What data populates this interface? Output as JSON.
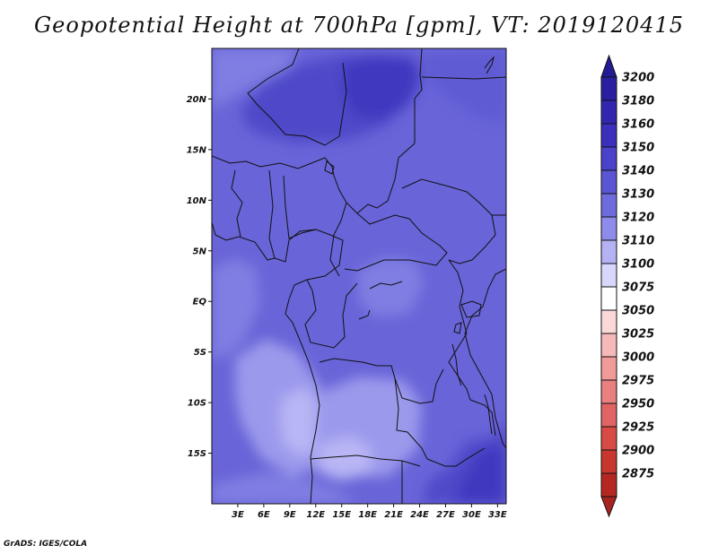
{
  "title": "Geopotential Height at 700hPa [gpm], VT: 2019120415",
  "credit": "GrADS: IGES/COLA",
  "map": {
    "lon_range": [
      0,
      34
    ],
    "lat_range": [
      -20,
      25
    ],
    "lat_ticks": [
      {
        "value": 20,
        "label": "20N"
      },
      {
        "value": 15,
        "label": "15N"
      },
      {
        "value": 10,
        "label": "10N"
      },
      {
        "value": 5,
        "label": "5N"
      },
      {
        "value": 0,
        "label": "EQ"
      },
      {
        "value": -5,
        "label": "5S"
      },
      {
        "value": -10,
        "label": "10S"
      },
      {
        "value": -15,
        "label": "15S"
      }
    ],
    "lon_ticks": [
      {
        "value": 3,
        "label": "3E"
      },
      {
        "value": 6,
        "label": "6E"
      },
      {
        "value": 9,
        "label": "9E"
      },
      {
        "value": 12,
        "label": "12E"
      },
      {
        "value": 15,
        "label": "15E"
      },
      {
        "value": 18,
        "label": "18E"
      },
      {
        "value": 21,
        "label": "21E"
      },
      {
        "value": 24,
        "label": "24E"
      },
      {
        "value": 27,
        "label": "27E"
      },
      {
        "value": 30,
        "label": "30E"
      },
      {
        "value": 33,
        "label": "33E"
      }
    ]
  },
  "colorbar": {
    "levels": [
      {
        "label": "3200",
        "color": "#2a1fa0"
      },
      {
        "label": "3180",
        "color": "#3226ae"
      },
      {
        "label": "3160",
        "color": "#3b30bb"
      },
      {
        "label": "3150",
        "color": "#4a42c8"
      },
      {
        "label": "3140",
        "color": "#5a55d2"
      },
      {
        "label": "3130",
        "color": "#6e6cdd"
      },
      {
        "label": "3120",
        "color": "#8e8ceb"
      },
      {
        "label": "3110",
        "color": "#b4b2f3"
      },
      {
        "label": "3100",
        "color": "#d8d6fa"
      },
      {
        "label": "3075",
        "color": "#ffffff"
      },
      {
        "label": "3050",
        "color": "#fbd8d8"
      },
      {
        "label": "3025",
        "color": "#f6b9b9"
      },
      {
        "label": "3000",
        "color": "#f09a9a"
      },
      {
        "label": "2975",
        "color": "#e88080"
      },
      {
        "label": "2950",
        "color": "#e06464"
      },
      {
        "label": "2925",
        "color": "#d84a44"
      },
      {
        "label": "2900",
        "color": "#c8362e"
      },
      {
        "label": "2875",
        "color": "#b52822"
      }
    ],
    "top_arrow_color": "#241a92",
    "bottom_arrow_color": "#a82420"
  },
  "field_colors": {
    "deep": "#3f37bf",
    "high": "#4f49c9",
    "mid": "#5f5bd3",
    "base": "#6964d8",
    "light": "#807ee2",
    "lighter": "#9b99ec",
    "pale": "#b8b6f4",
    "palest": "#d5d3fa"
  }
}
